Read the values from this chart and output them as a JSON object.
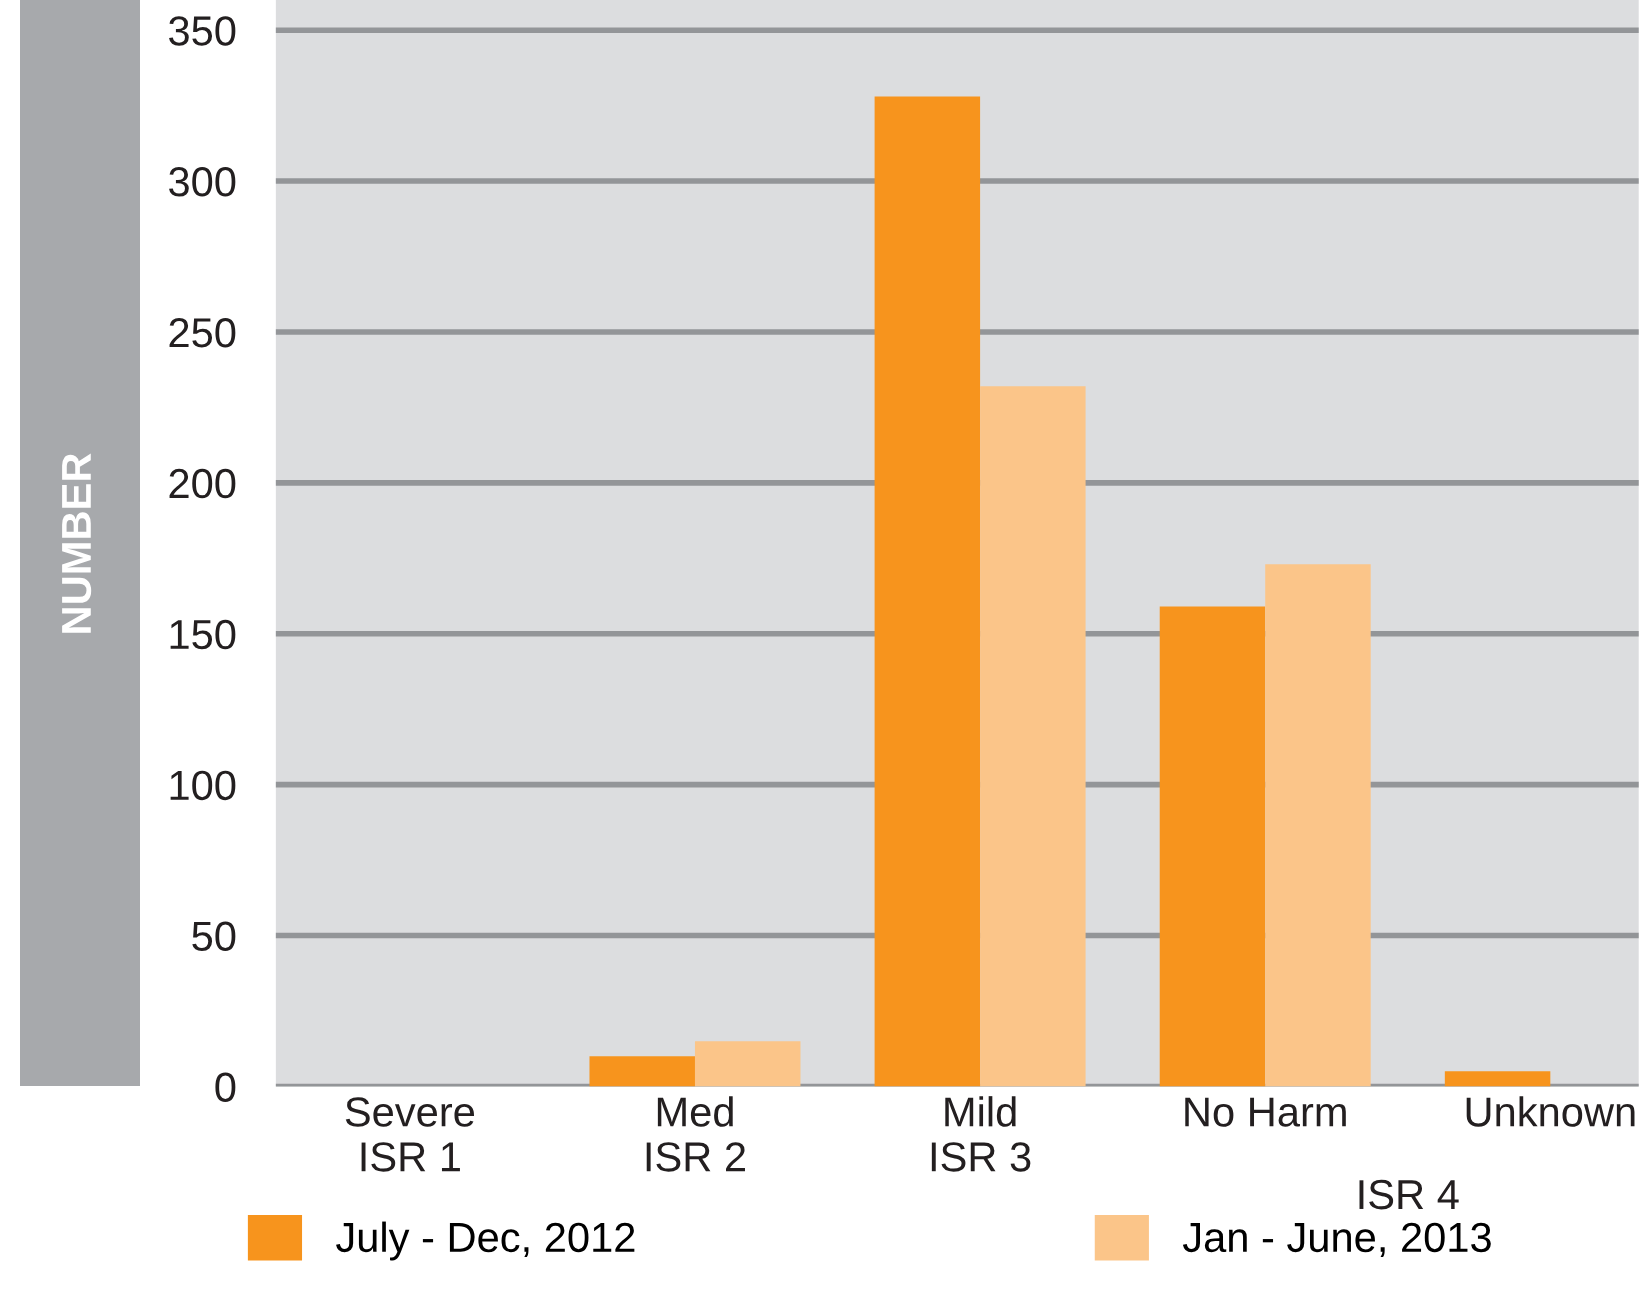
{
  "chart_data": {
    "type": "bar",
    "ylabel": "NUMBER",
    "categories": [
      "Severe\nISR 1",
      "Med\nISR 2",
      "Mild\nISR 3",
      "No Harm",
      "Unknown"
    ],
    "series": [
      {
        "name": "July - Dec, 2012",
        "color": "#f7941d",
        "values": [
          0,
          10,
          328,
          159,
          5
        ]
      },
      {
        "name": "Jan - June, 2013",
        "color": "#fbc589",
        "values": [
          0,
          15,
          232,
          173,
          0
        ]
      }
    ],
    "annotations": [
      "ISR 4"
    ],
    "ylim": [
      0,
      360
    ],
    "yticks": [
      0,
      50,
      100,
      150,
      200,
      250,
      300,
      350
    ],
    "grid": "y",
    "legend": "bottom"
  }
}
